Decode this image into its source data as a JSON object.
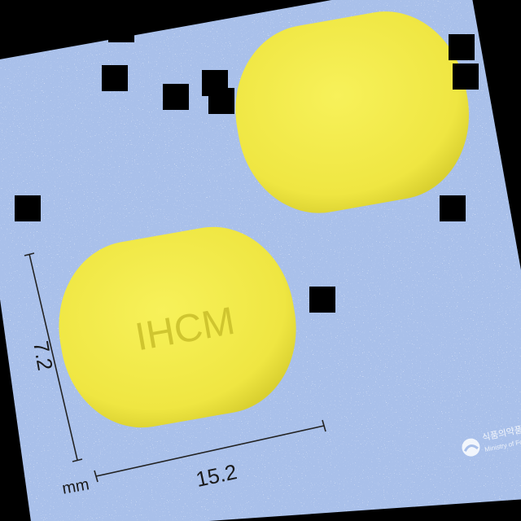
{
  "photo": {
    "background_color": "#a9c0ea",
    "pill_color": "#f3ec4a",
    "pill_shadow_color": "#d8cf2e"
  },
  "pill_imprint": "IHCM",
  "dimensions": {
    "height_value": "7.2",
    "width_value": "15.2",
    "unit": "mm"
  },
  "watermark": {
    "logo": "mfds-logo-icon",
    "line1": "식품의약품안전",
    "line2": "Ministry of Food"
  }
}
